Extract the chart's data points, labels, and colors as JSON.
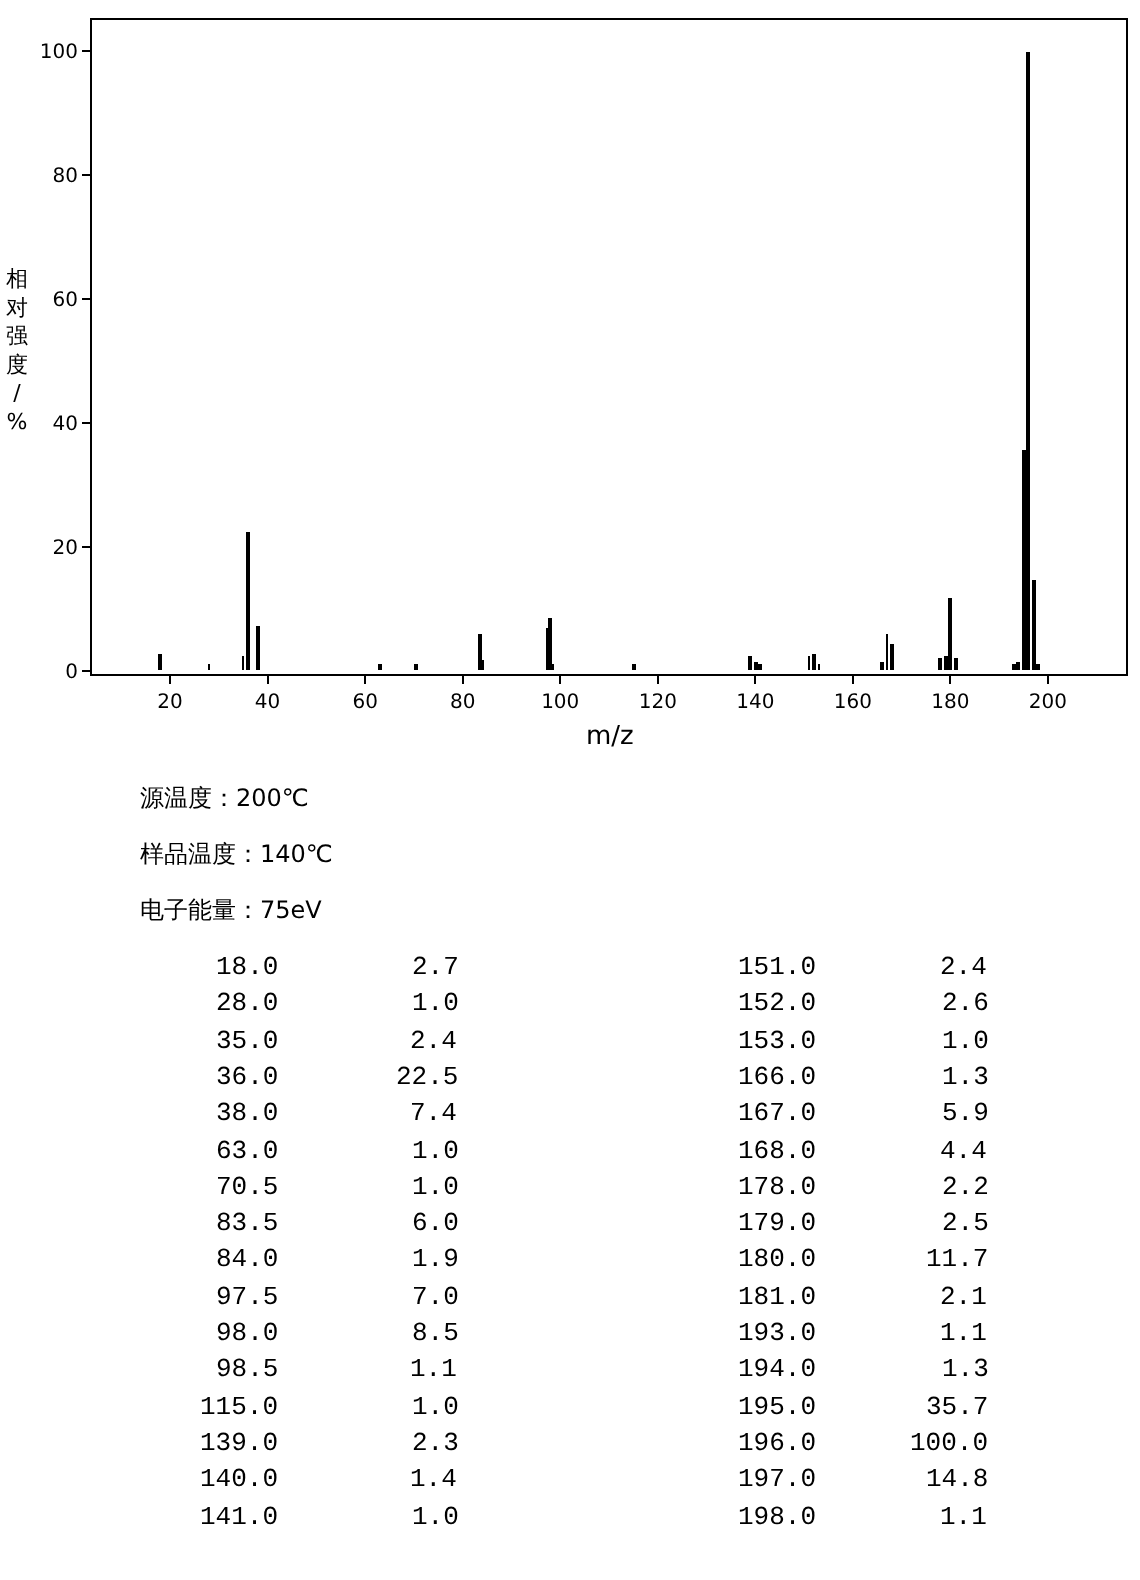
{
  "chart_data": {
    "type": "bar",
    "xlabel": "m/z",
    "ylabel": "相对强度/%",
    "x": [
      18.0,
      28.0,
      35.0,
      36.0,
      38.0,
      63.0,
      70.5,
      83.5,
      84.0,
      97.5,
      98.0,
      98.5,
      115.0,
      139.0,
      140.0,
      141.0,
      151.0,
      152.0,
      153.0,
      166.0,
      167.0,
      168.0,
      178.0,
      179.0,
      180.0,
      181.0,
      193.0,
      194.0,
      195.0,
      196.0,
      197.0,
      198.0
    ],
    "values": [
      2.7,
      1.0,
      2.4,
      22.5,
      7.4,
      1.0,
      1.0,
      6.0,
      1.9,
      7.0,
      8.5,
      1.1,
      1.0,
      2.3,
      1.4,
      1.0,
      2.4,
      2.6,
      1.0,
      1.3,
      5.9,
      4.4,
      2.2,
      2.5,
      11.7,
      2.1,
      1.1,
      1.3,
      35.7,
      100.0,
      14.8,
      1.1
    ],
    "color": "#000000",
    "xlim": [
      4,
      216
    ],
    "xticks": [
      20,
      40,
      60,
      80,
      100,
      120,
      140,
      160,
      180,
      200
    ],
    "ylim": [
      -0.5,
      105
    ],
    "yticks": [
      0,
      20,
      40,
      60,
      80,
      100
    ],
    "annotations": [
      "源温度：200℃",
      "样品温度：140℃",
      "电子能量：75eV",
      "18.0",
      "2.7",
      "28.0",
      "1.0",
      "35.0",
      "2.4",
      "36.0",
      "22.5",
      "38.0",
      "7.4",
      "63.0",
      "1.0",
      "70.5",
      "1.0",
      "83.5",
      "6.0",
      "84.0",
      "1.9",
      "97.5",
      "7.0",
      "98.0",
      "8.5",
      "98.5",
      "1.1",
      "115.0",
      "1.0",
      "139.0",
      "2.3",
      "140.0",
      "1.4",
      "141.0",
      "1.0",
      "151.0",
      "2.4",
      "152.0",
      "2.6",
      "153.0",
      "1.0",
      "166.0",
      "1.3",
      "167.0",
      "5.9",
      "168.0",
      "4.4",
      "178.0",
      "2.2",
      "179.0",
      "2.5",
      "180.0",
      "11.7",
      "181.0",
      "2.1",
      "193.0",
      "1.1",
      "194.0",
      "1.3",
      "195.0",
      "35.7",
      "196.0",
      "100.0",
      "197.0",
      "14.8",
      "198.0",
      "1.1"
    ]
  }
}
